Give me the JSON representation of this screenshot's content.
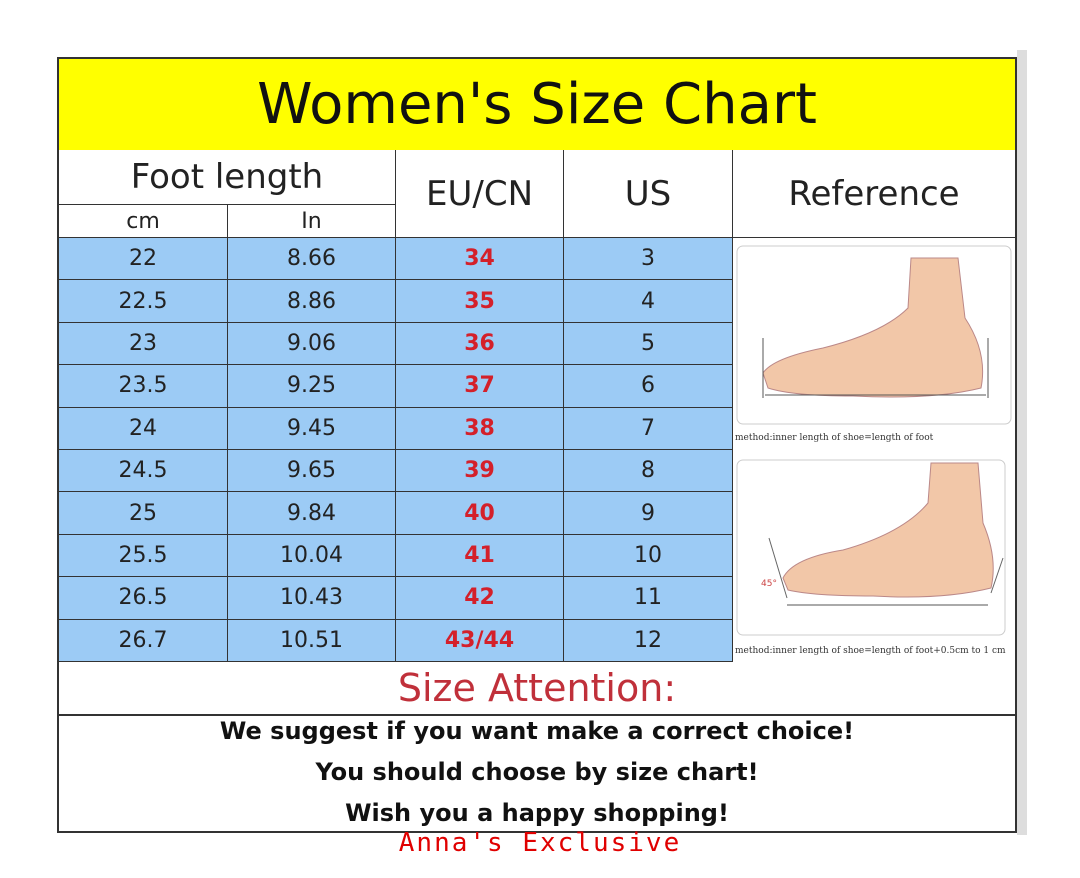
{
  "title": "Women's Size Chart",
  "headers": {
    "foot_length": "Foot length",
    "cm": "cm",
    "in": "In",
    "eu_cn": "EU/CN",
    "us": "US",
    "reference": "Reference"
  },
  "rows": [
    {
      "cm": "22",
      "in": "8.66",
      "eu": "34",
      "us": "3"
    },
    {
      "cm": "22.5",
      "in": "8.86",
      "eu": "35",
      "us": "4"
    },
    {
      "cm": "23",
      "in": "9.06",
      "eu": "36",
      "us": "5"
    },
    {
      "cm": "23.5",
      "in": "9.25",
      "eu": "37",
      "us": "6"
    },
    {
      "cm": "24",
      "in": "9.45",
      "eu": "38",
      "us": "7"
    },
    {
      "cm": "24.5",
      "in": "9.65",
      "eu": "39",
      "us": "8"
    },
    {
      "cm": "25",
      "in": "9.84",
      "eu": "40",
      "us": "9"
    },
    {
      "cm": "25.5",
      "in": "10.04",
      "eu": "41",
      "us": "10"
    },
    {
      "cm": "26.5",
      "in": "10.43",
      "eu": "42",
      "us": "11"
    },
    {
      "cm": "26.7",
      "in": "10.51",
      "eu": "43/44",
      "us": "12"
    }
  ],
  "reference": {
    "caption1": "method:inner length of shoe=length of foot",
    "caption2": "method:inner length of shoe=length of foot+0.5cm to 1 cm",
    "angle": "45°"
  },
  "attention": {
    "title": "Size Attention:",
    "lines": [
      "We suggest if you want make a correct choice!",
      "You should choose by size chart!",
      "Wish you a happy shopping!"
    ]
  },
  "watermark": "Anna's Exclusive",
  "colors": {
    "title_bg": "#ffff00",
    "row_bg": "#9ccbf5",
    "eu_text": "#d4202a",
    "attention": "#c0303a",
    "watermark": "#e00000"
  }
}
